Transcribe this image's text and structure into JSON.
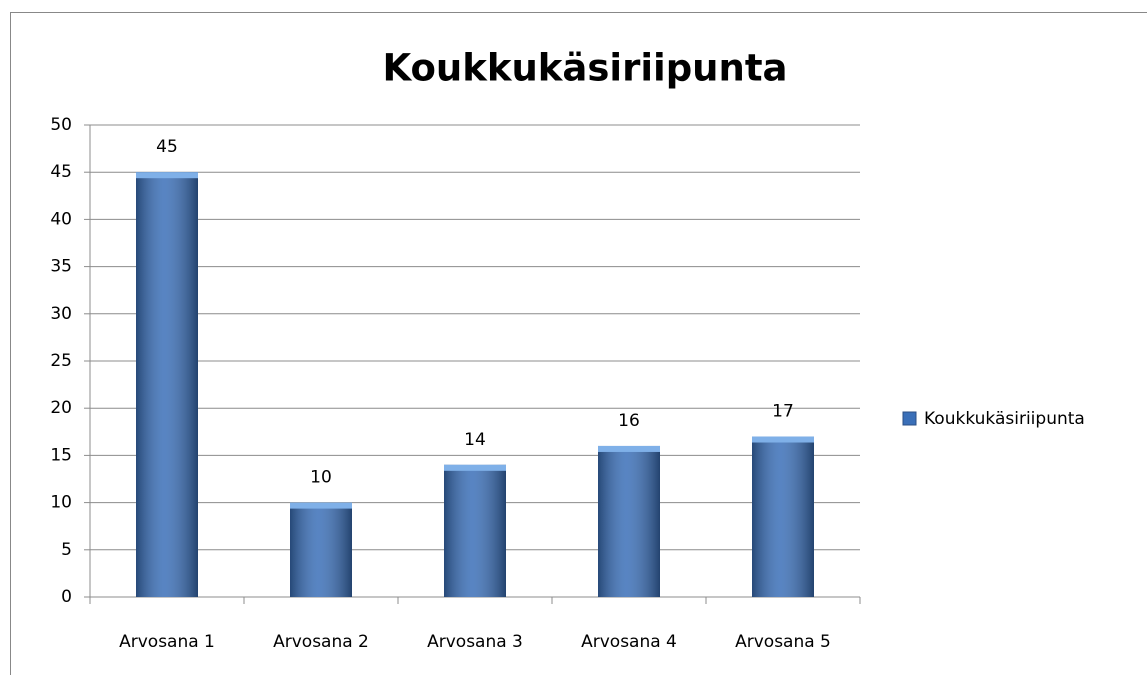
{
  "chart_data": {
    "type": "bar",
    "title": "Koukkukäsiriipunta",
    "categories": [
      "Arvosana 1",
      "Arvosana 2",
      "Arvosana 3",
      "Arvosana 4",
      "Arvosana 5"
    ],
    "series": [
      {
        "name": "Koukkukäsiriipunta",
        "color": "#3a6fb8",
        "values": [
          45,
          10,
          14,
          16,
          17
        ]
      }
    ],
    "ylim": [
      0,
      50
    ],
    "yticks": [
      0,
      5,
      10,
      15,
      20,
      25,
      30,
      35,
      40,
      45,
      50
    ],
    "grid": true,
    "legend": "right"
  }
}
